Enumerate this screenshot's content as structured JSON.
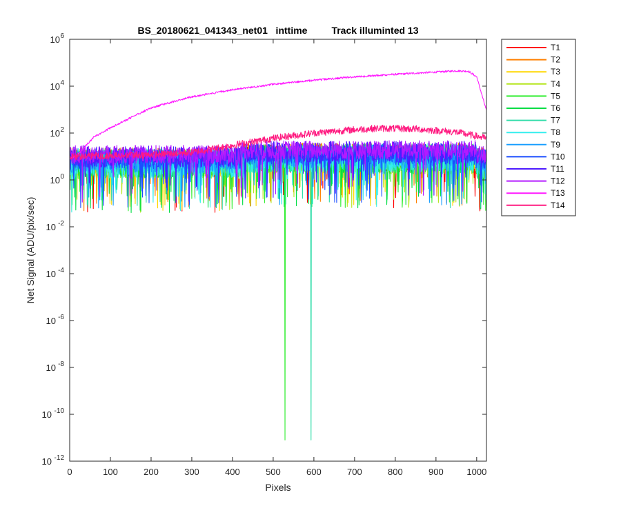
{
  "chart_data": {
    "type": "line",
    "title": "BS_20180621_041343_net01   inttime         Track illuminted 13",
    "xlabel": "Pixels",
    "ylabel": "Net Signal (ADU/pix/sec)",
    "xlim": [
      0,
      1024
    ],
    "ylim": [
      1e-12,
      1000000.0
    ],
    "yscale": "log",
    "grid": false,
    "legend_position": "outside-right",
    "x_ticks": [
      0,
      100,
      200,
      300,
      400,
      500,
      600,
      700,
      800,
      900,
      1000
    ],
    "y_ticks": [
      {
        "value": 1e-12,
        "base": "10",
        "exp": "-12"
      },
      {
        "value": 1e-10,
        "base": "10",
        "exp": "-10"
      },
      {
        "value": 1e-08,
        "base": "10",
        "exp": "-8"
      },
      {
        "value": 1e-06,
        "base": "10",
        "exp": "-6"
      },
      {
        "value": 0.0001,
        "base": "10",
        "exp": "-4"
      },
      {
        "value": 0.01,
        "base": "10",
        "exp": "-2"
      },
      {
        "value": 1,
        "base": "10",
        "exp": "0"
      },
      {
        "value": 100,
        "base": "10",
        "exp": "2"
      },
      {
        "value": 10000,
        "base": "10",
        "exp": "4"
      },
      {
        "value": 1000000,
        "base": "10",
        "exp": "6"
      }
    ],
    "series": [
      {
        "name": "T1",
        "color": "#ff0000",
        "base": 5,
        "amp": 0.6,
        "dips": []
      },
      {
        "name": "T2",
        "color": "#ff8000",
        "base": 6,
        "amp": 0.6,
        "dips": []
      },
      {
        "name": "T3",
        "color": "#ffd700",
        "base": 5,
        "amp": 0.6,
        "dips": []
      },
      {
        "name": "T4",
        "color": "#b5e61d",
        "base": 5,
        "amp": 0.65,
        "dips": []
      },
      {
        "name": "T5",
        "color": "#33ee33",
        "base": 5,
        "amp": 0.65,
        "dips": [
          {
            "x": 529,
            "y": 8e-12
          }
        ]
      },
      {
        "name": "T6",
        "color": "#00dd44",
        "base": 5,
        "amp": 0.6,
        "dips": []
      },
      {
        "name": "T7",
        "color": "#33ddaa",
        "base": 5,
        "amp": 0.6,
        "dips": [
          {
            "x": 593,
            "y": 8e-12
          }
        ]
      },
      {
        "name": "T8",
        "color": "#33eeee",
        "base": 5,
        "amp": 0.65,
        "dips": []
      },
      {
        "name": "T9",
        "color": "#1a9fff",
        "base": 6,
        "amp": 0.5,
        "dips": []
      },
      {
        "name": "T10",
        "color": "#1a4dff",
        "base": 8,
        "amp": 0.45,
        "dips": []
      },
      {
        "name": "T11",
        "color": "#4d1aff",
        "base": 10,
        "amp": 0.45,
        "dips": []
      },
      {
        "name": "T12",
        "color": "#b31aff",
        "base": 12,
        "amp": 0.4,
        "dips": []
      },
      {
        "name": "T13",
        "color": "#ff1aff",
        "profile": [
          [
            0,
            8
          ],
          [
            20,
            12
          ],
          [
            60,
            70
          ],
          [
            120,
            250
          ],
          [
            200,
            1200
          ],
          [
            300,
            3500
          ],
          [
            400,
            7000
          ],
          [
            500,
            12000
          ],
          [
            600,
            18000
          ],
          [
            700,
            25000
          ],
          [
            800,
            32000
          ],
          [
            900,
            40000
          ],
          [
            950,
            45000
          ],
          [
            980,
            43000
          ],
          [
            1000,
            25000
          ],
          [
            1024,
            900
          ]
        ],
        "noise": 0.04
      },
      {
        "name": "T14",
        "color": "#ff1a80",
        "profile": [
          [
            0,
            10
          ],
          [
            200,
            12
          ],
          [
            300,
            15
          ],
          [
            400,
            30
          ],
          [
            500,
            60
          ],
          [
            600,
            100
          ],
          [
            700,
            140
          ],
          [
            760,
            160
          ],
          [
            850,
            150
          ],
          [
            950,
            110
          ],
          [
            1024,
            60
          ]
        ],
        "noise": 0.15
      }
    ]
  }
}
